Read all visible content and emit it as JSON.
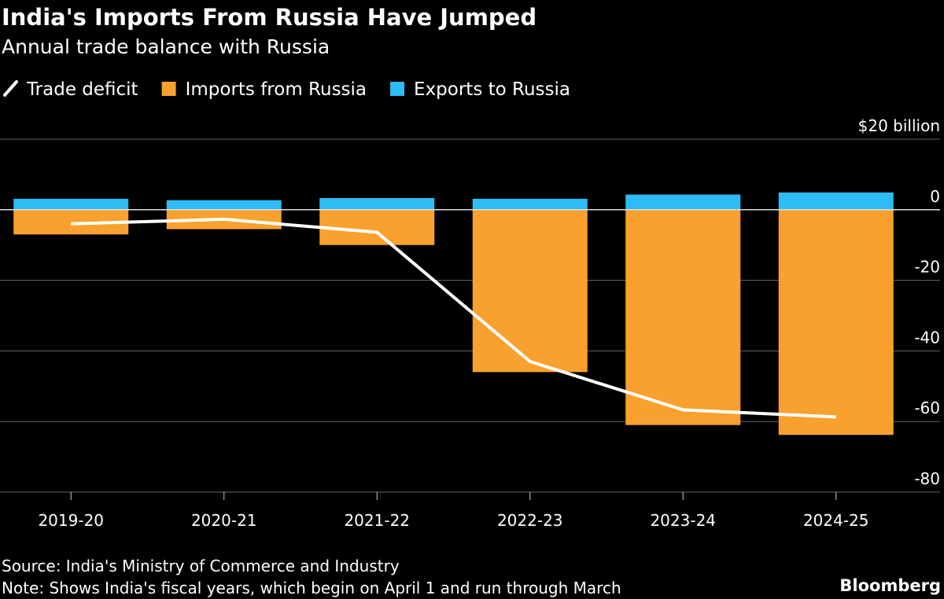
{
  "chart_data": {
    "type": "bar",
    "title": "India's Imports From Russia Have Jumped",
    "subtitle": "Annual trade balance with Russia",
    "categories": [
      "2019-20",
      "2020-21",
      "2021-22",
      "2022-23",
      "2023-24",
      "2024-25"
    ],
    "series": [
      {
        "name": "Trade deficit",
        "type": "line",
        "color": "#ffffff",
        "values": [
          -4,
          -2.7,
          -6.4,
          -43,
          -56.7,
          -58.7
        ]
      },
      {
        "name": "Imports from Russia",
        "type": "bar",
        "color": "#f9a12e",
        "values": [
          -7,
          -5.5,
          -10,
          -46,
          -61,
          -63.8
        ]
      },
      {
        "name": "Exports to Russia",
        "type": "bar",
        "color": "#2dbcf5",
        "values": [
          3.1,
          2.7,
          3.3,
          3.1,
          4.3,
          4.9
        ]
      }
    ],
    "ylim": [
      -80,
      20
    ],
    "yticks": [
      {
        "value": 20,
        "label": "$20 billion"
      },
      0,
      -20,
      -40,
      -60,
      -80
    ],
    "grid": true,
    "source": "Source: India's Ministry of Commerce and Industry",
    "note": "Note: Shows India's fiscal years, which begin on April 1 and run through March",
    "brand": "Bloomberg"
  }
}
